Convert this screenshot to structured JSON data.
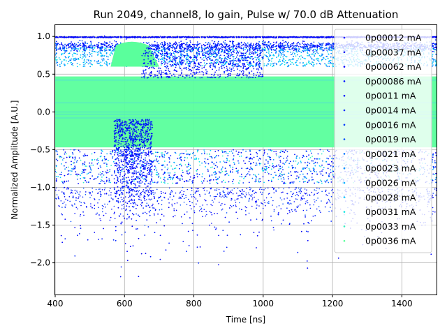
{
  "chart_data": {
    "type": "scatter",
    "title": "Run 2049, channel8, lo gain, Pulse w/ 70.0 dB Attenuation",
    "xlabel": "Time [ns]",
    "ylabel": "Normalized Amplitude [A.U.]",
    "xlim": [
      400,
      1500
    ],
    "ylim": [
      -2.42,
      1.15
    ],
    "xticks": [
      400,
      600,
      800,
      1000,
      1200,
      1400
    ],
    "yticks": [
      -2.0,
      -1.5,
      -1.0,
      -0.5,
      0.0,
      0.5,
      1.0
    ],
    "xtick_labels": [
      "400",
      "600",
      "800",
      "1000",
      "1200",
      "1400"
    ],
    "ytick_labels": [
      "−2.0",
      "−1.5",
      "−1.0",
      "−0.5",
      "0.0",
      "0.5",
      "1.0"
    ],
    "grid": true,
    "legend_position": "top-right",
    "series": [
      {
        "name": "0p00012 mA",
        "color": "#0000ff"
      },
      {
        "name": "0p00037 mA",
        "color": "#0000f1"
      },
      {
        "name": "0p00062 mA",
        "color": "#0004ff"
      },
      {
        "name": "0p00086 mA",
        "color": "#0010ff"
      },
      {
        "name": "0p0011 mA",
        "color": "#001cff"
      },
      {
        "name": "0p0014 mA",
        "color": "#0028ff"
      },
      {
        "name": "0p0016 mA",
        "color": "#0038ff"
      },
      {
        "name": "0p0019 mA",
        "color": "#0050ff"
      },
      {
        "name": "0p0021 mA",
        "color": "#0070ff"
      },
      {
        "name": "0p0023 mA",
        "color": "#0090ff"
      },
      {
        "name": "0p0026 mA",
        "color": "#00b0ff"
      },
      {
        "name": "0p0028 mA",
        "color": "#00d0ff"
      },
      {
        "name": "0p0031 mA",
        "color": "#14e8e2"
      },
      {
        "name": "0p0033 mA",
        "color": "#35f0c1"
      },
      {
        "name": "0p0036 mA",
        "color": "#5aff9c"
      }
    ]
  }
}
